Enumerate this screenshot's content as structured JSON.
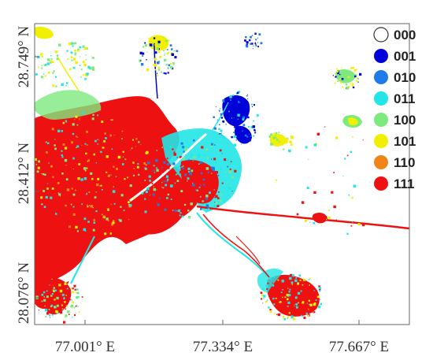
{
  "map": {
    "x_ticks": [
      "77.001° E",
      "77.334° E",
      "77.667° E"
    ],
    "y_ticks": [
      "28.749° N",
      "28.412° N",
      "28.076° N"
    ]
  },
  "legend": {
    "items": [
      {
        "code": "000",
        "color": "#ffffff"
      },
      {
        "code": "001",
        "color": "#0000d8"
      },
      {
        "code": "010",
        "color": "#1e7be8"
      },
      {
        "code": "011",
        "color": "#22e6e6"
      },
      {
        "code": "100",
        "color": "#7eea7e"
      },
      {
        "code": "101",
        "color": "#f0f000"
      },
      {
        "code": "110",
        "color": "#f08418"
      },
      {
        "code": "111",
        "color": "#ee1111"
      }
    ]
  },
  "colors": {
    "frame": "#666666",
    "blue": "#0000d8",
    "lightblue": "#1e7be8",
    "cyan": "#22e6e6",
    "green": "#7eea7e",
    "yellow": "#f0f000",
    "orange": "#f08418",
    "red": "#ee1111"
  }
}
